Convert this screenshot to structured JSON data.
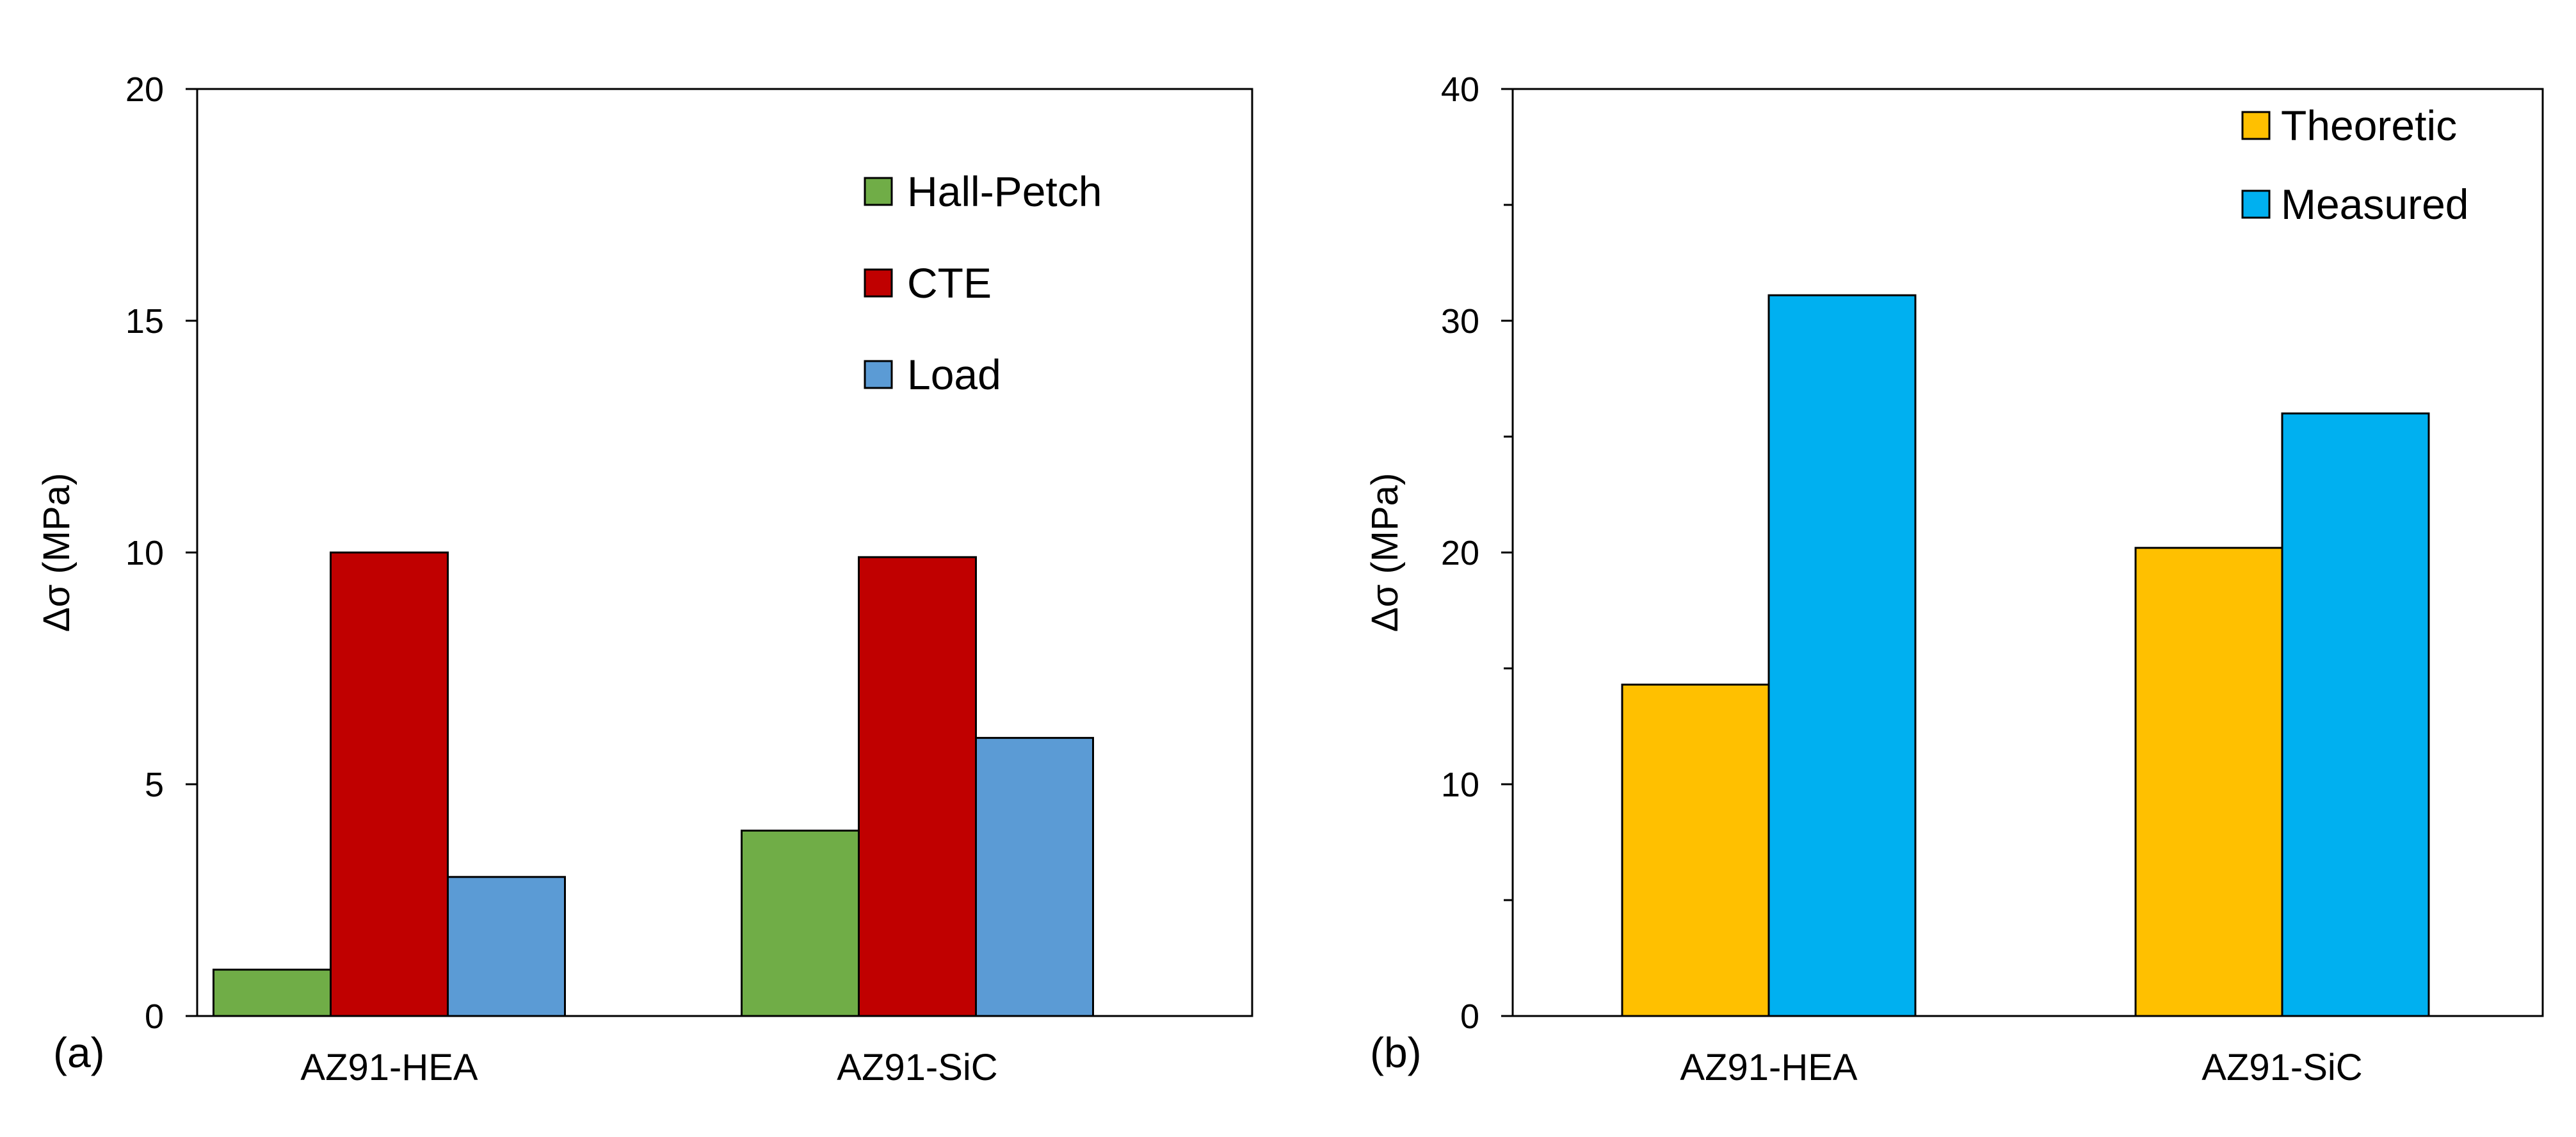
{
  "chart_data": [
    {
      "type": "bar",
      "panel_label": "(a)",
      "title": "",
      "xlabel": "",
      "ylabel": "Δσ (MPa)",
      "ylim": [
        0,
        20
      ],
      "yticks": [
        0,
        5,
        10,
        15,
        20
      ],
      "categories": [
        "AZ91-HEA",
        "AZ91-SiC"
      ],
      "series": [
        {
          "name": "Hall-Petch",
          "color": "#70AD47",
          "values": [
            1,
            4
          ]
        },
        {
          "name": "CTE",
          "color": "#C00000",
          "values": [
            10,
            9.9
          ]
        },
        {
          "name": "Load",
          "color": "#5B9BD5",
          "values": [
            3,
            6
          ]
        }
      ],
      "legend_position": "top-right",
      "grid": false
    },
    {
      "type": "bar",
      "panel_label": "(b)",
      "title": "",
      "xlabel": "",
      "ylabel": "Δσ (MPa)",
      "ylim": [
        0,
        40
      ],
      "yticks": [
        0,
        10,
        20,
        30,
        40
      ],
      "categories": [
        "AZ91-HEA",
        "AZ91-SiC"
      ],
      "series": [
        {
          "name": "Theoretic",
          "color": "#FFC000",
          "values": [
            14.3,
            20.2
          ]
        },
        {
          "name": "Measured",
          "color": "#00B0F0",
          "values": [
            31.1,
            26
          ]
        }
      ],
      "legend_position": "top-right",
      "grid": false
    }
  ]
}
